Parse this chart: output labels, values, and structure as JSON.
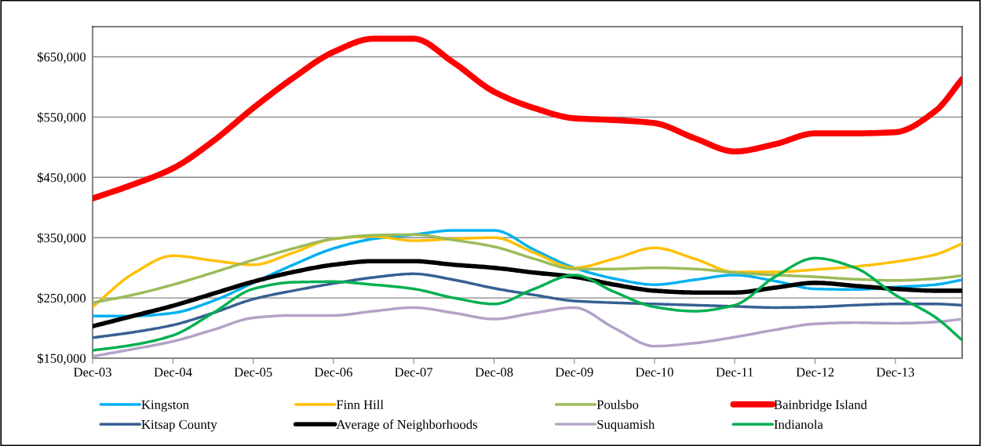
{
  "chart_data": {
    "type": "line",
    "x": [
      "2003-12",
      "2004-06",
      "2004-12",
      "2005-06",
      "2005-12",
      "2006-06",
      "2006-12",
      "2007-06",
      "2007-12",
      "2008-06",
      "2008-12",
      "2009-06",
      "2009-12",
      "2010-06",
      "2010-12",
      "2011-06",
      "2011-12",
      "2012-06",
      "2012-12",
      "2013-06",
      "2013-12",
      "2014-06",
      "2014-10"
    ],
    "series": [
      {
        "name": "Kingston",
        "color": "#00b0f0",
        "values": [
          220000,
          220000,
          225000,
          245000,
          275000,
          305000,
          332000,
          348000,
          355000,
          362000,
          362000,
          330000,
          300000,
          282000,
          272000,
          280000,
          288000,
          278000,
          265000,
          264000,
          268000,
          272000,
          280000
        ]
      },
      {
        "name": "Finn Hill",
        "color": "#ffc000",
        "values": [
          235000,
          290000,
          320000,
          312000,
          305000,
          325000,
          348000,
          352000,
          345000,
          348000,
          350000,
          325000,
          300000,
          315000,
          333000,
          315000,
          293000,
          293000,
          297000,
          302000,
          310000,
          322000,
          340000
        ]
      },
      {
        "name": "Poulsbo",
        "color": "#9bbb59",
        "values": [
          242000,
          255000,
          272000,
          292000,
          313000,
          332000,
          348000,
          354000,
          355000,
          346000,
          335000,
          315000,
          298000,
          298000,
          300000,
          298000,
          292000,
          288000,
          285000,
          281000,
          279000,
          282000,
          287000
        ]
      },
      {
        "name": "Bainbridge Island",
        "color": "#ff0000",
        "values": [
          415000,
          438000,
          465000,
          510000,
          565000,
          615000,
          658000,
          680000,
          680000,
          640000,
          592000,
          565000,
          548000,
          545000,
          540000,
          515000,
          493000,
          505000,
          523000,
          523000,
          525000,
          560000,
          613000
        ]
      },
      {
        "name": "Kitsap County",
        "color": "#376092",
        "values": [
          184000,
          193000,
          205000,
          225000,
          248000,
          262000,
          274000,
          284000,
          290000,
          280000,
          266000,
          255000,
          245000,
          242000,
          240000,
          238000,
          236000,
          234000,
          235000,
          238000,
          240000,
          240000,
          238000
        ]
      },
      {
        "name": "Average of Neighborhoods",
        "color": "#000000",
        "values": [
          203000,
          220000,
          237000,
          257000,
          277000,
          293000,
          305000,
          311000,
          311000,
          305000,
          300000,
          292000,
          285000,
          272000,
          262000,
          259000,
          259000,
          267000,
          275000,
          270000,
          265000,
          262000,
          262000
        ]
      },
      {
        "name": "Suquamish",
        "color": "#b3a2c7",
        "values": [
          153000,
          165000,
          178000,
          197000,
          217000,
          221000,
          221000,
          228000,
          234000,
          225000,
          215000,
          225000,
          234000,
          200000,
          170000,
          175000,
          185000,
          197000,
          207000,
          209000,
          208000,
          210000,
          215000
        ]
      },
      {
        "name": "Indianola",
        "color": "#00b050",
        "values": [
          163000,
          172000,
          188000,
          225000,
          265000,
          276000,
          277000,
          272000,
          265000,
          250000,
          240000,
          265000,
          288000,
          260000,
          235000,
          228000,
          238000,
          285000,
          316000,
          300000,
          255000,
          218000,
          180000
        ]
      }
    ],
    "xlim": [
      "2003-12",
      "2014-10"
    ],
    "xticks": [
      {
        "value": "2003-12",
        "label": "Dec-03"
      },
      {
        "value": "2004-12",
        "label": "Dec-04"
      },
      {
        "value": "2005-12",
        "label": "Dec-05"
      },
      {
        "value": "2006-12",
        "label": "Dec-06"
      },
      {
        "value": "2007-12",
        "label": "Dec-07"
      },
      {
        "value": "2008-12",
        "label": "Dec-08"
      },
      {
        "value": "2009-12",
        "label": "Dec-09"
      },
      {
        "value": "2010-12",
        "label": "Dec-10"
      },
      {
        "value": "2011-12",
        "label": "Dec-11"
      },
      {
        "value": "2012-12",
        "label": "Dec-12"
      },
      {
        "value": "2013-12",
        "label": "Dec-13"
      }
    ],
    "ylim": [
      150000,
      700000
    ],
    "yticks": [
      {
        "value": 150000,
        "label": "$150,000"
      },
      {
        "value": 250000,
        "label": "$250,000"
      },
      {
        "value": 350000,
        "label": "$350,000"
      },
      {
        "value": 450000,
        "label": "$450,000"
      },
      {
        "value": 550000,
        "label": "$550,000"
      },
      {
        "value": 650000,
        "label": "$650,000"
      }
    ],
    "grid": "y",
    "legend": "bottom",
    "marker": "none",
    "line_style": "solid"
  }
}
